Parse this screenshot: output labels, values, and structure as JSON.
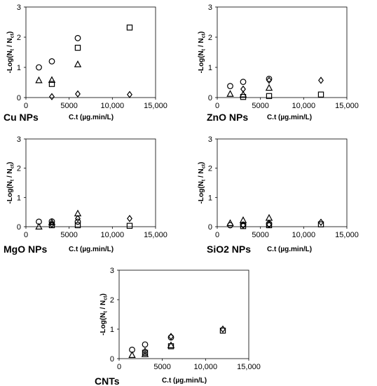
{
  "chart_data": [
    {
      "type": "scatter",
      "title": "Cu NPs",
      "xlabel": "C.t (µg.min/L)",
      "ylabel": "-Log(Nt / Nct)",
      "ylabel_parts": {
        "prefix": "-Log(N",
        "sub1": "t",
        "mid": " / N",
        "sub2": "ct",
        "suffix": ")"
      },
      "xlim": [
        0,
        15000
      ],
      "ylim": [
        0,
        3
      ],
      "xticks": [
        "0",
        "5000",
        "10,000",
        "15,000"
      ],
      "yticks": [
        "0",
        "1",
        "2",
        "3"
      ],
      "grid": false,
      "series": [
        {
          "marker": "circle",
          "x": [
            1500,
            3000,
            6000
          ],
          "y": [
            1.0,
            1.2,
            1.97
          ]
        },
        {
          "marker": "triangle",
          "x": [
            1500,
            3000,
            6000
          ],
          "y": [
            0.57,
            0.58,
            1.1
          ]
        },
        {
          "marker": "square",
          "x": [
            3000,
            6000,
            12000
          ],
          "y": [
            0.45,
            1.65,
            2.32
          ]
        },
        {
          "marker": "diamond",
          "x": [
            3000,
            6000,
            12000
          ],
          "y": [
            0.03,
            0.12,
            0.1
          ]
        }
      ]
    },
    {
      "type": "scatter",
      "title": "ZnO NPs",
      "xlabel": "C.t (µg.min/L)",
      "ylabel": "-Log(Nt / Nct)",
      "ylabel_parts": {
        "prefix": "-Log(N",
        "sub1": "t",
        "mid": " / N",
        "sub2": "ct",
        "suffix": ")"
      },
      "xlim": [
        0,
        15000
      ],
      "ylim": [
        0,
        3
      ],
      "xticks": [
        "0",
        "5000",
        "10,000",
        "15,000"
      ],
      "yticks": [
        "0",
        "1",
        "2",
        "3"
      ],
      "grid": false,
      "series": [
        {
          "marker": "circle",
          "x": [
            1500,
            3000,
            6000
          ],
          "y": [
            0.38,
            0.52,
            0.62
          ]
        },
        {
          "marker": "triangle",
          "x": [
            1500,
            3000,
            6000
          ],
          "y": [
            0.12,
            0.1,
            0.32
          ]
        },
        {
          "marker": "square",
          "x": [
            3000,
            6000,
            12000
          ],
          "y": [
            0.02,
            0.05,
            0.1
          ]
        },
        {
          "marker": "diamond",
          "x": [
            3000,
            6000,
            12000
          ],
          "y": [
            0.28,
            0.57,
            0.57
          ]
        }
      ]
    },
    {
      "type": "scatter",
      "title": "MgO NPs",
      "xlabel": "C.t (µg.min/L)",
      "ylabel": "-Log(Nt / Nct)",
      "ylabel_parts": {
        "prefix": "-Log(N",
        "sub1": "t",
        "mid": " / N",
        "sub2": "ct",
        "suffix": ")"
      },
      "xlim": [
        0,
        15000
      ],
      "ylim": [
        0,
        3
      ],
      "xticks": [
        "0",
        "5000",
        "10,000",
        "15,000"
      ],
      "yticks": [
        "0",
        "1",
        "2",
        "3"
      ],
      "grid": false,
      "series": [
        {
          "marker": "circle",
          "x": [
            1500,
            3000,
            6000
          ],
          "y": [
            0.17,
            0.18,
            0.17
          ]
        },
        {
          "marker": "triangle",
          "x": [
            1500,
            3000,
            6000
          ],
          "y": [
            0.0,
            0.15,
            0.45
          ]
        },
        {
          "marker": "square",
          "x": [
            3000,
            6000,
            12000
          ],
          "y": [
            0.05,
            0.05,
            0.03
          ]
        },
        {
          "marker": "diamond",
          "x": [
            3000,
            6000,
            12000
          ],
          "y": [
            0.08,
            0.28,
            0.28
          ]
        }
      ]
    },
    {
      "type": "scatter",
      "title": "SiO2 NPs",
      "xlabel": "C.t (µg.min/L)",
      "ylabel": "-Log(Nt / Nct)",
      "ylabel_parts": {
        "prefix": "-Log(N",
        "sub1": "t",
        "mid": " / N",
        "sub2": "ct",
        "suffix": ")"
      },
      "xlim": [
        0,
        15000
      ],
      "ylim": [
        0,
        3
      ],
      "xticks": [
        "0",
        "5000",
        "10,000",
        "15,000"
      ],
      "yticks": [
        "0",
        "1",
        "2",
        "3"
      ],
      "grid": false,
      "series": [
        {
          "marker": "circle",
          "x": [
            1500,
            3000,
            6000
          ],
          "y": [
            0.05,
            0.07,
            0.1
          ]
        },
        {
          "marker": "triangle",
          "x": [
            1500,
            3000,
            6000
          ],
          "y": [
            0.12,
            0.22,
            0.3
          ]
        },
        {
          "marker": "square",
          "x": [
            3000,
            6000,
            12000
          ],
          "y": [
            0.02,
            0.05,
            0.08
          ]
        },
        {
          "marker": "diamond",
          "x": [
            3000,
            6000,
            12000
          ],
          "y": [
            0.05,
            0.07,
            0.15
          ]
        }
      ]
    },
    {
      "type": "scatter",
      "title": "CNTs",
      "xlabel": "C.t (µg.min/L)",
      "ylabel": "-Log(Nt / Nct)",
      "ylabel_parts": {
        "prefix": "-Log(N",
        "sub1": "t",
        "mid": " / N",
        "sub2": "ct",
        "suffix": ")"
      },
      "xlim": [
        0,
        15000
      ],
      "ylim": [
        0,
        3
      ],
      "xticks": [
        "0",
        "5000",
        "10,000",
        "15,000"
      ],
      "yticks": [
        "0",
        "1",
        "2",
        "3"
      ],
      "grid": false,
      "series": [
        {
          "marker": "circle",
          "x": [
            1500,
            3000,
            6000
          ],
          "y": [
            0.3,
            0.48,
            0.72
          ]
        },
        {
          "marker": "triangle",
          "x": [
            1500,
            3000,
            6000
          ],
          "y": [
            0.12,
            0.15,
            0.45
          ]
        },
        {
          "marker": "square",
          "x": [
            3000,
            6000,
            12000
          ],
          "y": [
            0.2,
            0.42,
            0.95
          ]
        },
        {
          "marker": "diamond",
          "x": [
            3000,
            6000,
            12000
          ],
          "y": [
            0.25,
            0.75,
            1.0
          ]
        }
      ]
    }
  ]
}
